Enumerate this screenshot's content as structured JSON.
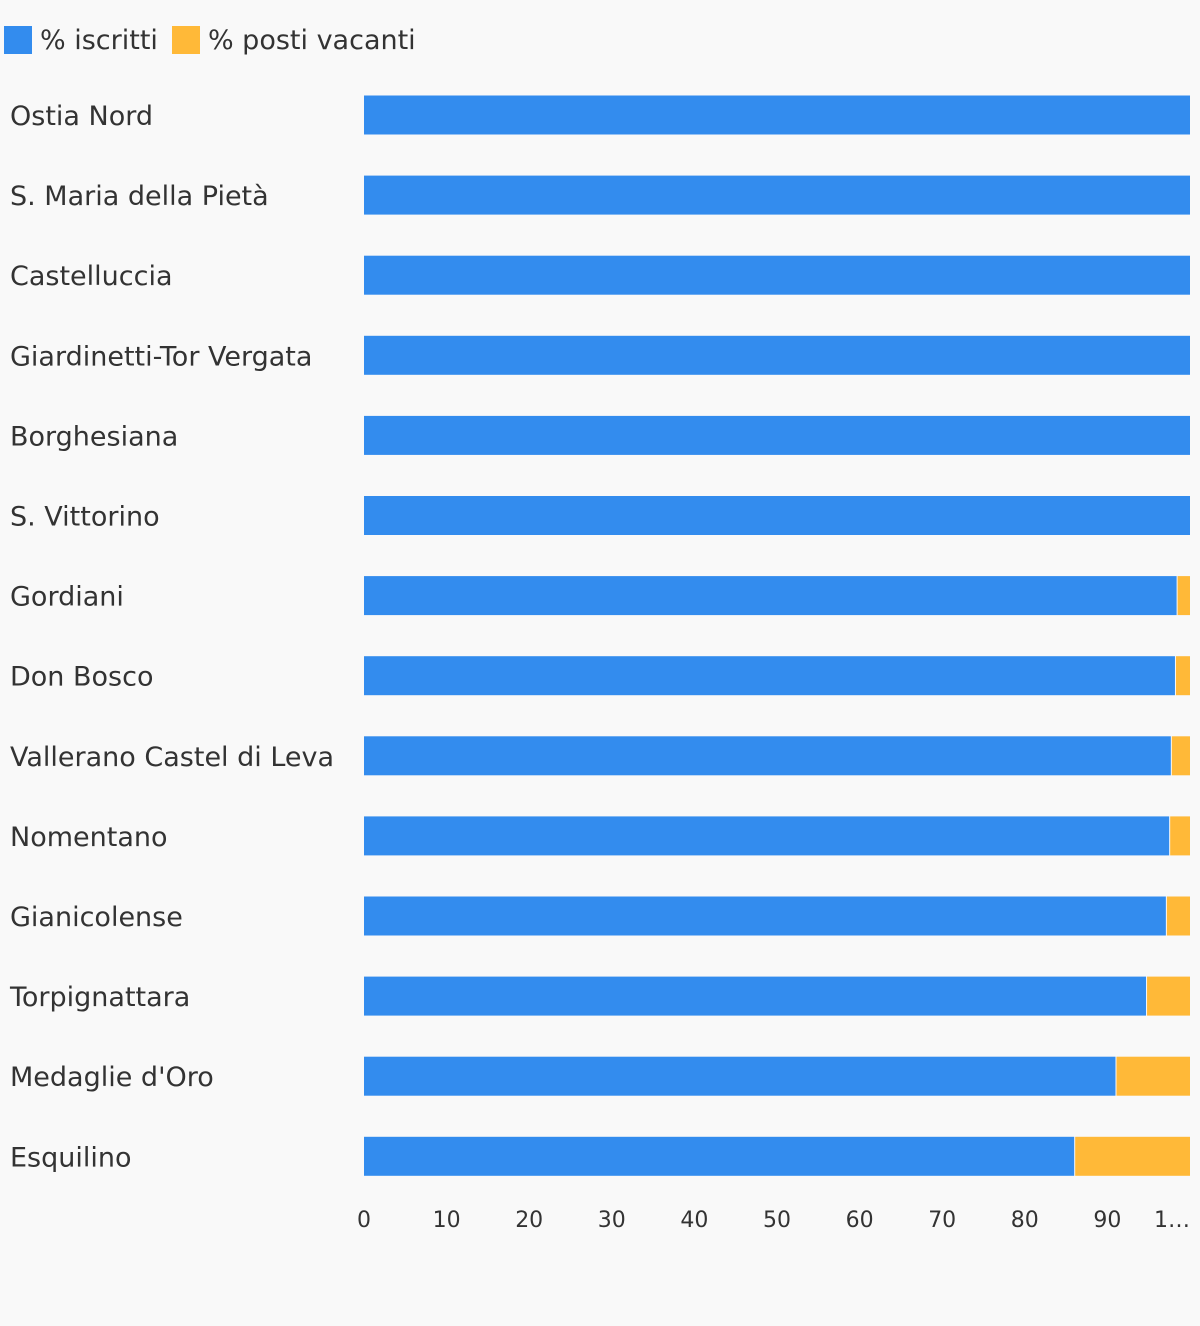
{
  "chart_data": {
    "type": "bar",
    "orientation": "horizontal",
    "stacked": true,
    "categories": [
      "Ostia Nord",
      "S. Maria della Pietà",
      "Castelluccia",
      "Giardinetti-Tor Vergata",
      "Borghesiana",
      "S. Vittorino",
      "Gordiani",
      "Don Bosco",
      "Vallerano Castel di Leva",
      "Nomentano",
      "Gianicolense",
      "Torpignattara",
      "Medaglie d'Oro",
      "Esquilino"
    ],
    "series": [
      {
        "name": "% iscritti",
        "color": "#338cee",
        "values": [
          100,
          100,
          100,
          100,
          100,
          100,
          98.5,
          98.3,
          97.8,
          97.6,
          97.2,
          94.8,
          91.1,
          86.1
        ]
      },
      {
        "name": "% posti vacanti",
        "color": "#ffb938",
        "values": [
          0,
          0,
          0,
          0,
          0,
          0,
          1.5,
          1.7,
          2.2,
          2.4,
          2.8,
          5.2,
          8.9,
          13.9
        ]
      }
    ],
    "xlim": [
      0,
      100
    ],
    "x_ticks": [
      "0",
      "10",
      "20",
      "30",
      "40",
      "50",
      "60",
      "70",
      "80",
      "90",
      "1…"
    ],
    "grid": false,
    "legend": "top-left",
    "title": "",
    "xlabel": "",
    "ylabel": ""
  }
}
